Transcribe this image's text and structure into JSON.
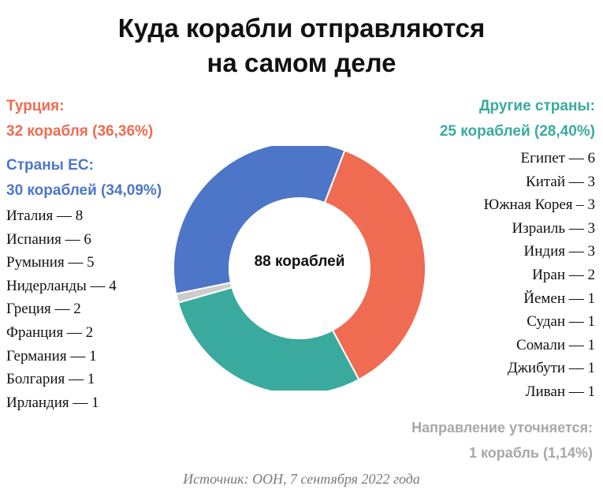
{
  "title_line1": "Куда корабли отправляются",
  "title_line2": "на самом деле",
  "turkey": {
    "name": "Турция:",
    "detail": "32 корабля (36,36%)",
    "color": "#ef6b52"
  },
  "eu": {
    "name": "Страны ЕС:",
    "detail": "30 кораблей (34,09%)",
    "color": "#4d76c9",
    "countries": [
      "Италия — 8",
      "Испания — 6",
      "Румыния — 5",
      "Нидерланды — 4",
      "Греция — 2",
      "Франция — 2",
      "Германия — 1",
      "Болгария — 1",
      "Ирландия — 1"
    ]
  },
  "other": {
    "name": "Другие страны:",
    "detail": "25 кораблей (28,40%)",
    "color": "#3aaa9f",
    "countries": [
      "Египет — 6",
      "Китай — 3",
      "Южная Корея – 3",
      "Израиль — 3",
      "Индия — 3",
      "Иран — 2",
      "Йемен — 1",
      "Судан — 1",
      "Сомали — 1",
      "Джибути — 1",
      "Ливан — 1"
    ]
  },
  "pending": {
    "name": "Направление уточняется:",
    "detail": "1 корабль (1,14%)",
    "color": "#cccccc"
  },
  "center_label": "88 кораблей",
  "source": "Источник: ООН, 7 сентября 2022 года",
  "chart_data": {
    "type": "pie",
    "title": "Куда корабли отправляются на самом деле",
    "total": 88,
    "slices": [
      {
        "label": "Турция",
        "value": 32,
        "percent": 36.36,
        "color": "#ef6b52"
      },
      {
        "label": "Другие страны",
        "value": 25,
        "percent": 28.4,
        "color": "#3aaa9f"
      },
      {
        "label": "Направление уточняется",
        "value": 1,
        "percent": 1.14,
        "color": "#cccccc"
      },
      {
        "label": "Страны ЕС",
        "value": 30,
        "percent": 34.09,
        "color": "#4d76c9"
      }
    ]
  }
}
